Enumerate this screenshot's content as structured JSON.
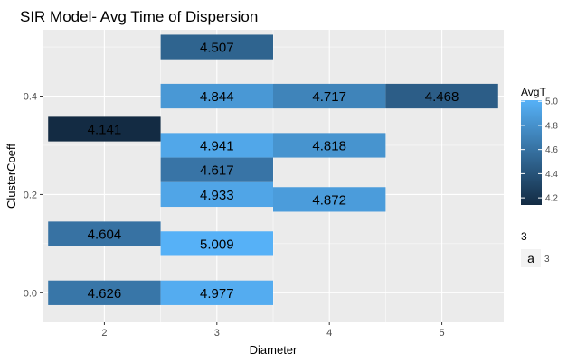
{
  "chart_data": {
    "type": "heatmap",
    "title": "SIR Model- Avg Time of Dispersion",
    "xlabel": "Diameter",
    "ylabel": "ClusterCoeff",
    "x_ticks": [
      "2",
      "3",
      "4",
      "5"
    ],
    "y_ticks": [
      "0.0",
      "0.2",
      "0.4"
    ],
    "xlim": [
      1.45,
      5.55
    ],
    "ylim": [
      -0.06,
      0.535
    ],
    "grid": true,
    "colors": {
      "low": "#132B43",
      "high": "#56B1F7",
      "panel": "#EBEBEB",
      "grid": "#FFFFFF"
    },
    "color_range": [
      4.141,
      5.009
    ],
    "cells": [
      {
        "x": 3,
        "y": 0.5,
        "value": 4.507,
        "label": "4.507"
      },
      {
        "x": 3,
        "y": 0.4,
        "value": 4.844,
        "label": "4.844"
      },
      {
        "x": 4,
        "y": 0.4,
        "value": 4.717,
        "label": "4.717"
      },
      {
        "x": 5,
        "y": 0.4,
        "value": 4.468,
        "label": "4.468"
      },
      {
        "x": 2,
        "y": 0.333,
        "value": 4.141,
        "label": "4.141"
      },
      {
        "x": 3,
        "y": 0.3,
        "value": 4.941,
        "label": "4.941"
      },
      {
        "x": 4,
        "y": 0.3,
        "value": 4.818,
        "label": "4.818"
      },
      {
        "x": 3,
        "y": 0.25,
        "value": 4.617,
        "label": "4.617"
      },
      {
        "x": 3,
        "y": 0.2,
        "value": 4.933,
        "label": "4.933"
      },
      {
        "x": 4,
        "y": 0.19,
        "value": 4.872,
        "label": "4.872"
      },
      {
        "x": 2,
        "y": 0.12,
        "value": 4.604,
        "label": "4.604"
      },
      {
        "x": 3,
        "y": 0.1,
        "value": 5.009,
        "label": "5.009"
      },
      {
        "x": 2,
        "y": 0.0,
        "value": 4.626,
        "label": "4.626"
      },
      {
        "x": 3,
        "y": 0.0,
        "value": 4.977,
        "label": "4.977"
      }
    ],
    "cell_height": 0.05,
    "legend": {
      "title": "AvgT",
      "ticks": [
        "4.2",
        "4.4",
        "4.6",
        "4.8",
        "5.0"
      ],
      "tick_values": [
        4.2,
        4.4,
        4.6,
        4.8,
        5.0
      ],
      "placement": "right"
    },
    "legend2": {
      "title": "3",
      "key_glyph": "a",
      "key_label": "3"
    }
  }
}
